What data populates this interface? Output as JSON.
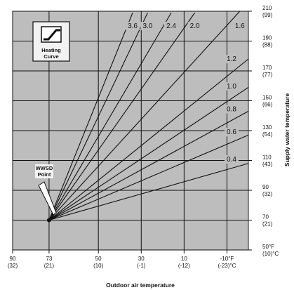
{
  "chart_data": {
    "type": "line",
    "title": "",
    "xlabel": "Outdoor air temperature",
    "ylabel": "Supply water temperature",
    "x_reversed": true,
    "xlim": [
      90,
      -20
    ],
    "ylim": [
      50,
      210
    ],
    "grid": true,
    "x_ticks": [
      {
        "value": 90,
        "label": "90",
        "sub": "(32)"
      },
      {
        "value": 73,
        "label": "73",
        "sub": "(21)"
      },
      {
        "value": 50,
        "label": "50",
        "sub": "(10)"
      },
      {
        "value": 30,
        "label": "30",
        "sub": "(-1)"
      },
      {
        "value": 10,
        "label": "10",
        "sub": "(-12)"
      },
      {
        "value": -10,
        "label": "-10°F",
        "sub": "(-23)°C"
      }
    ],
    "y_ticks": [
      {
        "value": 210,
        "label": "210",
        "sub": "(99)"
      },
      {
        "value": 190,
        "label": "190",
        "sub": "(88)"
      },
      {
        "value": 170,
        "label": "170",
        "sub": "(77)"
      },
      {
        "value": 150,
        "label": "150",
        "sub": "(66)"
      },
      {
        "value": 130,
        "label": "130",
        "sub": "(54)"
      },
      {
        "value": 110,
        "label": "110",
        "sub": "(43)"
      },
      {
        "value": 90,
        "label": "90",
        "sub": "(32)"
      },
      {
        "value": 70,
        "label": "70",
        "sub": "(21)"
      },
      {
        "value": 50,
        "label": "50°F",
        "sub": "(10)°C"
      }
    ],
    "origin": {
      "x": 73,
      "y": 70
    },
    "series": [
      {
        "name": "3.6",
        "x": [
          73,
          34
        ],
        "y": [
          70,
          209
        ]
      },
      {
        "name": "3.0",
        "x": [
          73,
          27
        ],
        "y": [
          70,
          209
        ]
      },
      {
        "name": "2.4",
        "x": [
          73,
          16
        ],
        "y": [
          70,
          209
        ]
      },
      {
        "name": "2.0",
        "x": [
          73,
          5
        ],
        "y": [
          70,
          209
        ]
      },
      {
        "name": "1.6",
        "x": [
          73,
          -16
        ],
        "y": [
          70,
          210
        ]
      },
      {
        "name": "1.2",
        "x": [
          73,
          -20
        ],
        "y": [
          70,
          178
        ]
      },
      {
        "name": "1.0",
        "x": [
          73,
          -20
        ],
        "y": [
          70,
          159
        ]
      },
      {
        "name": "0.8",
        "x": [
          73,
          -20
        ],
        "y": [
          70,
          143
        ]
      },
      {
        "name": "0.6",
        "x": [
          73,
          -20
        ],
        "y": [
          70,
          127
        ]
      },
      {
        "name": "0.4",
        "x": [
          73,
          -20
        ],
        "y": [
          70,
          108
        ]
      }
    ],
    "annotations": {
      "legend_box_title": "Heating Curve",
      "legend_icon": "heating-curve-icon",
      "wwsd_line1": "WWSD",
      "wwsd_line2": "Point"
    }
  }
}
